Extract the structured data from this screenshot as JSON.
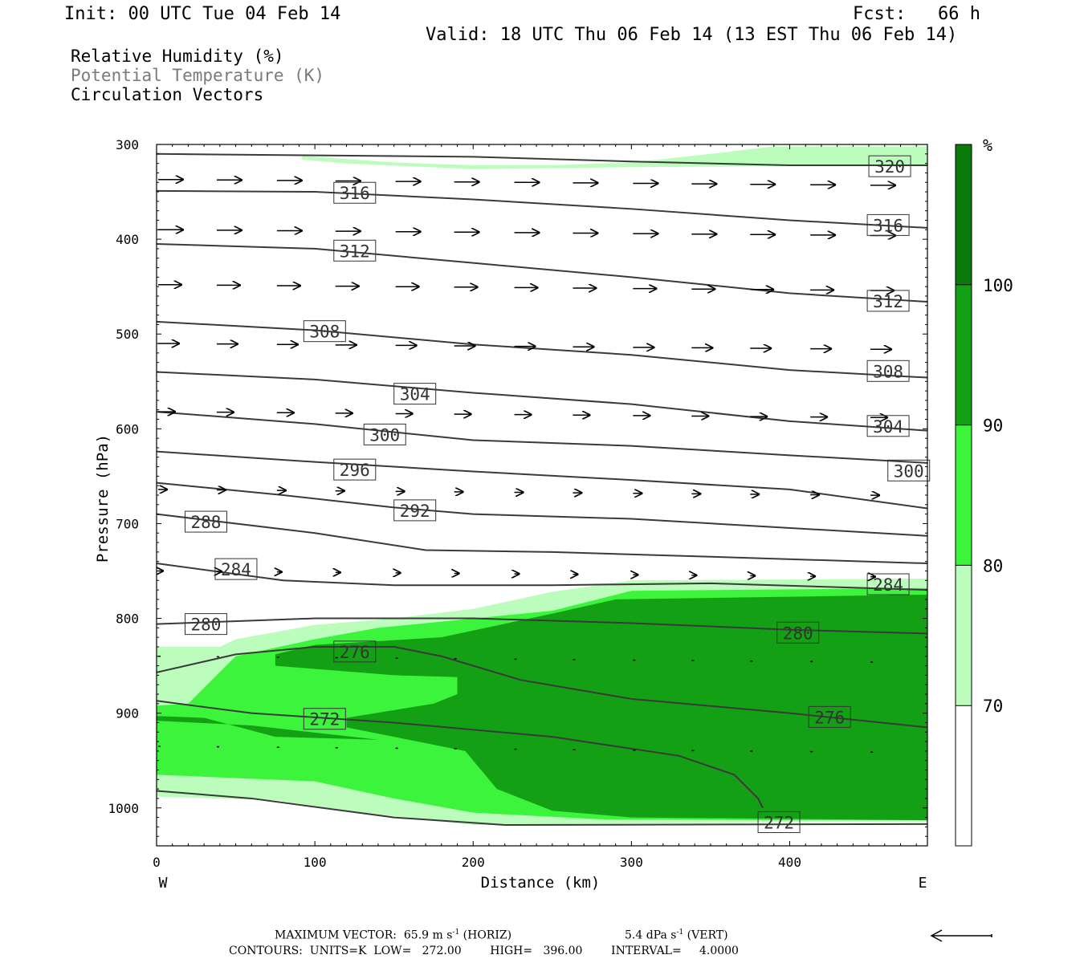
{
  "header": {
    "init": "Init: 00 UTC Tue 04 Feb 14",
    "fcst": "Fcst:   66 h",
    "valid": "Valid: 18 UTC Thu 06 Feb 14 (13 EST Thu 06 Feb 14)"
  },
  "fields": {
    "rh": "Relative Humidity (%)",
    "theta": "Potential Temperature (K)",
    "vectors": "Circulation Vectors"
  },
  "colors": {
    "rh70": "#bcfcbc",
    "rh80": "#3cf43c",
    "rh90": "#14a014",
    "rh100": "#0a7a0a",
    "contour": "#3a3a3a"
  },
  "chart_data": {
    "type": "cross-section",
    "xlabel": "Distance (km)",
    "ylabel": "Pressure (hPa)",
    "xlim": [
      0,
      487
    ],
    "ylim": [
      1040,
      300
    ],
    "xticks": [
      0,
      100,
      200,
      300,
      400
    ],
    "yticks": [
      300,
      400,
      500,
      600,
      700,
      800,
      900,
      1000
    ],
    "x_end_labels": {
      "left": "W",
      "right": "E"
    },
    "colorbar": {
      "unit": "%",
      "levels": [
        70,
        80,
        90,
        100
      ],
      "colors": [
        "#ffffff",
        "#bcfcbc",
        "#3cf43c",
        "#14a014",
        "#0a7a0a"
      ]
    },
    "theta_contours": [
      {
        "value": 272,
        "points": [
          [
            0,
            982
          ],
          [
            60,
            990
          ],
          [
            150,
            1010
          ],
          [
            220,
            1018
          ],
          [
            487,
            1017
          ]
        ]
      },
      {
        "value": 272,
        "points": [
          [
            0,
            887
          ],
          [
            60,
            900
          ],
          [
            150,
            910
          ],
          [
            250,
            925
          ],
          [
            330,
            945
          ],
          [
            365,
            965
          ],
          [
            380,
            990
          ],
          [
            383,
            1000
          ]
        ]
      },
      {
        "value": 276,
        "points": [
          [
            0,
            857
          ],
          [
            50,
            838
          ],
          [
            100,
            830
          ],
          [
            150,
            830
          ],
          [
            180,
            840
          ],
          [
            230,
            865
          ],
          [
            300,
            885
          ],
          [
            400,
            900
          ],
          [
            487,
            915
          ]
        ]
      },
      {
        "value": 280,
        "points": [
          [
            0,
            806
          ],
          [
            100,
            800
          ],
          [
            200,
            800
          ],
          [
            300,
            805
          ],
          [
            400,
            812
          ],
          [
            487,
            816
          ]
        ]
      },
      {
        "value": 284,
        "points": [
          [
            0,
            742
          ],
          [
            80,
            760
          ],
          [
            150,
            765
          ],
          [
            250,
            765
          ],
          [
            350,
            763
          ],
          [
            487,
            770
          ]
        ]
      },
      {
        "value": 288,
        "points": [
          [
            0,
            690
          ],
          [
            100,
            710
          ],
          [
            170,
            728
          ],
          [
            250,
            730
          ],
          [
            350,
            735
          ],
          [
            487,
            742
          ]
        ]
      },
      {
        "value": 292,
        "points": [
          [
            0,
            657
          ],
          [
            80,
            670
          ],
          [
            150,
            683
          ],
          [
            200,
            690
          ],
          [
            300,
            695
          ],
          [
            487,
            713
          ]
        ]
      },
      {
        "value": 296,
        "points": [
          [
            0,
            624
          ],
          [
            100,
            635
          ],
          [
            200,
            645
          ],
          [
            300,
            654
          ],
          [
            400,
            664
          ],
          [
            487,
            684
          ]
        ]
      },
      {
        "value": 300,
        "points": [
          [
            0,
            582
          ],
          [
            100,
            595
          ],
          [
            200,
            612
          ],
          [
            300,
            618
          ],
          [
            400,
            628
          ],
          [
            487,
            636
          ]
        ]
      },
      {
        "value": 304,
        "points": [
          [
            0,
            540
          ],
          [
            100,
            548
          ],
          [
            200,
            562
          ],
          [
            300,
            574
          ],
          [
            400,
            592
          ],
          [
            487,
            602
          ]
        ]
      },
      {
        "value": 308,
        "points": [
          [
            0,
            487
          ],
          [
            100,
            496
          ],
          [
            200,
            511
          ],
          [
            300,
            522
          ],
          [
            400,
            538
          ],
          [
            487,
            546
          ]
        ]
      },
      {
        "value": 312,
        "points": [
          [
            0,
            405
          ],
          [
            100,
            410
          ],
          [
            200,
            425
          ],
          [
            300,
            440
          ],
          [
            400,
            457
          ],
          [
            487,
            466
          ]
        ]
      },
      {
        "value": 316,
        "points": [
          [
            0,
            349
          ],
          [
            100,
            350
          ],
          [
            200,
            358
          ],
          [
            300,
            368
          ],
          [
            400,
            380
          ],
          [
            487,
            388
          ]
        ]
      },
      {
        "value": 320,
        "points": [
          [
            0,
            310
          ],
          [
            200,
            313
          ],
          [
            300,
            318
          ],
          [
            400,
            322
          ],
          [
            487,
            322
          ]
        ]
      }
    ],
    "contour_labels": [
      {
        "text": "320",
        "x": 450,
        "y": 323
      },
      {
        "text": "316",
        "x": 112,
        "y": 351
      },
      {
        "text": "316",
        "x": 449,
        "y": 385
      },
      {
        "text": "312",
        "x": 112,
        "y": 412
      },
      {
        "text": "312",
        "x": 449,
        "y": 465
      },
      {
        "text": "308",
        "x": 93,
        "y": 497
      },
      {
        "text": "308",
        "x": 449,
        "y": 539
      },
      {
        "text": "304",
        "x": 150,
        "y": 563
      },
      {
        "text": "304",
        "x": 449,
        "y": 597
      },
      {
        "text": "300",
        "x": 131,
        "y": 606
      },
      {
        "text": "300",
        "x": 462,
        "y": 644
      },
      {
        "text": "296",
        "x": 112,
        "y": 643
      },
      {
        "text": "292",
        "x": 150,
        "y": 686
      },
      {
        "text": "288",
        "x": 18,
        "y": 698
      },
      {
        "text": "284",
        "x": 37,
        "y": 748
      },
      {
        "text": "284",
        "x": 449,
        "y": 764
      },
      {
        "text": "280",
        "x": 18,
        "y": 806
      },
      {
        "text": "280",
        "x": 392,
        "y": 815
      },
      {
        "text": "276",
        "x": 112,
        "y": 835
      },
      {
        "text": "276",
        "x": 412,
        "y": 904
      },
      {
        "text": "272",
        "x": 93,
        "y": 906
      },
      {
        "text": "272",
        "x": 380,
        "y": 1015
      }
    ],
    "rh_regions": [
      {
        "level": 70,
        "points": [
          [
            92,
            312
          ],
          [
            150,
            319
          ],
          [
            200,
            322
          ],
          [
            250,
            322
          ],
          [
            300,
            319
          ],
          [
            350,
            310
          ],
          [
            390,
            302
          ],
          [
            487,
            302
          ],
          [
            487,
            322
          ],
          [
            300,
            324
          ],
          [
            200,
            326
          ],
          [
            120,
            320
          ],
          [
            92,
            316
          ]
        ]
      },
      {
        "level": 70,
        "points": [
          [
            0,
            830
          ],
          [
            40,
            830
          ],
          [
            50,
            822
          ],
          [
            100,
            807
          ],
          [
            150,
            800
          ],
          [
            200,
            790
          ],
          [
            250,
            772
          ],
          [
            300,
            760
          ],
          [
            487,
            758
          ],
          [
            487,
            1015
          ],
          [
            400,
            1015
          ],
          [
            200,
            1018
          ],
          [
            130,
            1005
          ],
          [
            75,
            992
          ],
          [
            0,
            988
          ]
        ]
      },
      {
        "level": 80,
        "points": [
          [
            0,
            892
          ],
          [
            20,
            890
          ],
          [
            50,
            840
          ],
          [
            100,
            822
          ],
          [
            140,
            810
          ],
          [
            250,
            792
          ],
          [
            300,
            771
          ],
          [
            487,
            768
          ],
          [
            487,
            1013
          ],
          [
            400,
            1013
          ],
          [
            280,
            1012
          ],
          [
            200,
            1005
          ],
          [
            150,
            990
          ],
          [
            100,
            972
          ],
          [
            0,
            965
          ]
        ]
      },
      {
        "level": 90,
        "points": [
          [
            0,
            903
          ],
          [
            30,
            905
          ],
          [
            75,
            925
          ],
          [
            140,
            928
          ],
          [
            60,
            913
          ],
          [
            0,
            908
          ]
        ]
      },
      {
        "level": 90,
        "points": [
          [
            75,
            838
          ],
          [
            100,
            828
          ],
          [
            180,
            820
          ],
          [
            250,
            795
          ],
          [
            290,
            780
          ],
          [
            487,
            775
          ],
          [
            487,
            1013
          ],
          [
            300,
            1010
          ],
          [
            250,
            1003
          ],
          [
            215,
            980
          ],
          [
            195,
            940
          ],
          [
            150,
            925
          ],
          [
            120,
            915
          ],
          [
            120,
            905
          ],
          [
            175,
            890
          ],
          [
            190,
            880
          ],
          [
            190,
            862
          ],
          [
            150,
            860
          ],
          [
            75,
            850
          ]
        ]
      }
    ],
    "vectors": {
      "max_horiz": "65.9 m s",
      "max_vert": "5.4 dPa s",
      "rows": [
        {
          "p": 337,
          "xs": [
            0,
            37,
            75,
            112,
            150,
            187,
            225,
            262,
            300,
            337,
            374,
            412,
            450
          ],
          "len": 32
        },
        {
          "p": 390,
          "xs": [
            0,
            37,
            75,
            112,
            150,
            187,
            225,
            262,
            300,
            337,
            374,
            412,
            450
          ],
          "len": 32
        },
        {
          "p": 448,
          "xs": [
            0,
            37,
            75,
            112,
            150,
            187,
            225,
            262,
            300,
            337,
            374,
            412,
            450
          ],
          "len": 30
        },
        {
          "p": 510,
          "xs": [
            0,
            37,
            75,
            112,
            150,
            187,
            225,
            262,
            300,
            337,
            374,
            412,
            450
          ],
          "len": 27
        },
        {
          "p": 582,
          "xs": [
            0,
            37,
            75,
            112,
            150,
            187,
            225,
            262,
            300,
            337,
            374,
            412,
            450
          ],
          "len": 22
        },
        {
          "p": 664,
          "xs": [
            0,
            37,
            75,
            112,
            150,
            187,
            225,
            262,
            300,
            337,
            374,
            412,
            450
          ],
          "len": 12
        },
        {
          "p": 750,
          "xs": [
            0,
            37,
            75,
            112,
            150,
            187,
            225,
            262,
            300,
            337,
            374,
            412,
            450
          ],
          "len": 7
        },
        {
          "p": 840,
          "xs": [
            0,
            37,
            75,
            112,
            150,
            187,
            225,
            262,
            300,
            337,
            374,
            412,
            450
          ],
          "len": 3
        },
        {
          "p": 935,
          "xs": [
            0,
            37,
            75,
            112,
            150,
            187,
            225,
            262,
            300,
            337,
            374,
            412,
            450
          ],
          "len": 2
        }
      ]
    }
  },
  "footer": {
    "line1a": "MAXIMUM VECTOR:  65.9 m s",
    "line1b": " (HORIZ)",
    "line1c": "5.4 dPa s",
    "line1d": " (VERT)",
    "exp": "-1",
    "line2": "CONTOURS:  UNITS=K  LOW=   272.00        HIGH=   396.00        INTERVAL=     4.0000"
  }
}
